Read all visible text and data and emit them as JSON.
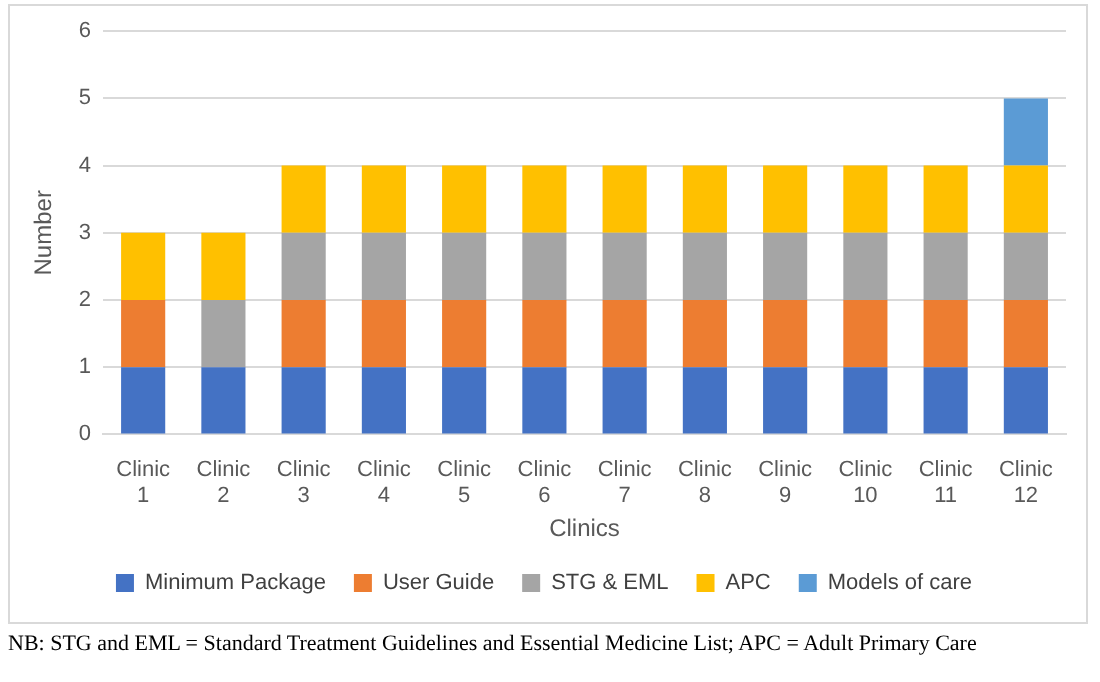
{
  "chart_data": {
    "type": "bar",
    "stacked": true,
    "xlabel": "Clinics",
    "ylabel": "Number",
    "categories": [
      "Clinic 1",
      "Clinic 2",
      "Clinic 3",
      "Clinic 4",
      "Clinic 5",
      "Clinic 6",
      "Clinic 7",
      "Clinic 8",
      "Clinic 9",
      "Clinic 10",
      "Clinic 11",
      "Clinic 12"
    ],
    "series": [
      {
        "name": "Minimum Package",
        "color": "#4472c4",
        "values": [
          1,
          1,
          1,
          1,
          1,
          1,
          1,
          1,
          1,
          1,
          1,
          1
        ]
      },
      {
        "name": "User Guide",
        "color": "#ed7d31",
        "values": [
          1,
          0,
          1,
          1,
          1,
          1,
          1,
          1,
          1,
          1,
          1,
          1
        ]
      },
      {
        "name": "STG & EML",
        "color": "#a5a5a5",
        "values": [
          0,
          1,
          1,
          1,
          1,
          1,
          1,
          1,
          1,
          1,
          1,
          1
        ]
      },
      {
        "name": "APC",
        "color": "#ffc000",
        "values": [
          1,
          1,
          1,
          1,
          1,
          1,
          1,
          1,
          1,
          1,
          1,
          1
        ]
      },
      {
        "name": "Models of care",
        "color": "#5b9bd5",
        "values": [
          0,
          0,
          0,
          0,
          0,
          0,
          0,
          0,
          0,
          0,
          0,
          1
        ]
      }
    ],
    "ylim": [
      0,
      6
    ],
    "yticks": [
      0,
      1,
      2,
      3,
      4,
      5,
      6
    ],
    "grid": "y",
    "legend": "bottom",
    "annotations": [
      "NB: STG and EML = Standard Treatment Guidelines and Essential Medicine List; APC = Adult Primary Care"
    ]
  }
}
